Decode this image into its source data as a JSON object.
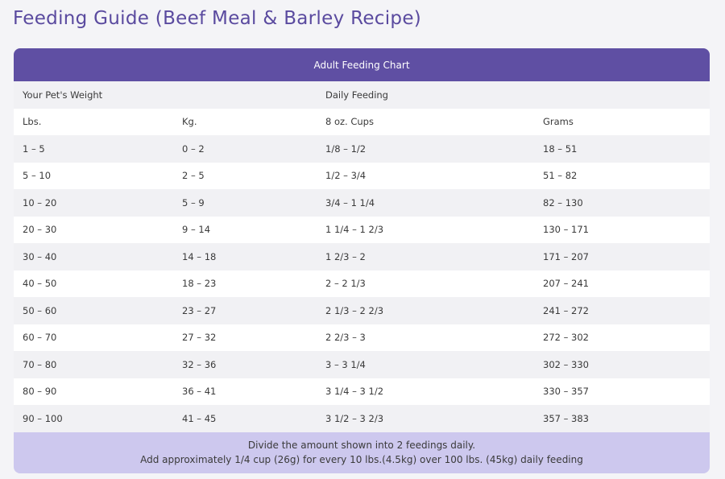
{
  "header": {
    "title": "Feeding Guide (Beef Meal & Barley Recipe)"
  },
  "table": {
    "caption": "Adult Feeding Chart",
    "groups": [
      "Your Pet's Weight",
      "Daily Feeding"
    ],
    "columns": [
      "Lbs.",
      "Kg.",
      "8 oz. Cups",
      "Grams"
    ],
    "rows": [
      [
        "1 – 5",
        "0 – 2",
        "1/8 – 1/2",
        "18 – 51"
      ],
      [
        "5 – 10",
        "2 – 5",
        "1/2 – 3/4",
        "51 – 82"
      ],
      [
        "10 – 20",
        "5 – 9",
        "3/4 – 1 1/4",
        "82 – 130"
      ],
      [
        "20 – 30",
        "9 – 14",
        "1 1/4 – 1 2/3",
        "130 – 171"
      ],
      [
        "30 – 40",
        "14 – 18",
        "1 2/3 – 2",
        "171 – 207"
      ],
      [
        "40 – 50",
        "18 – 23",
        "2 – 2 1/3",
        "207 – 241"
      ],
      [
        "50 – 60",
        "23 – 27",
        "2 1/3 – 2 2/3",
        "241 – 272"
      ],
      [
        "60 – 70",
        "27 – 32",
        "2 2/3 – 3",
        "272 – 302"
      ],
      [
        "70 – 80",
        "32 – 36",
        "3 – 3 1/4",
        "302 – 330"
      ],
      [
        "80 – 90",
        "36 – 41",
        "3 1/4 – 3 1/2",
        "330 – 357"
      ],
      [
        "90 – 100",
        "41 – 45",
        "3 1/2 – 3 2/3",
        "357 – 383"
      ]
    ],
    "footer": [
      "Divide the amount shown into 2 feedings daily.",
      "Add approximately 1/4 cup (26g) for every 10 lbs.(4.5kg) over 100 lbs. (45kg) daily feeding"
    ]
  }
}
